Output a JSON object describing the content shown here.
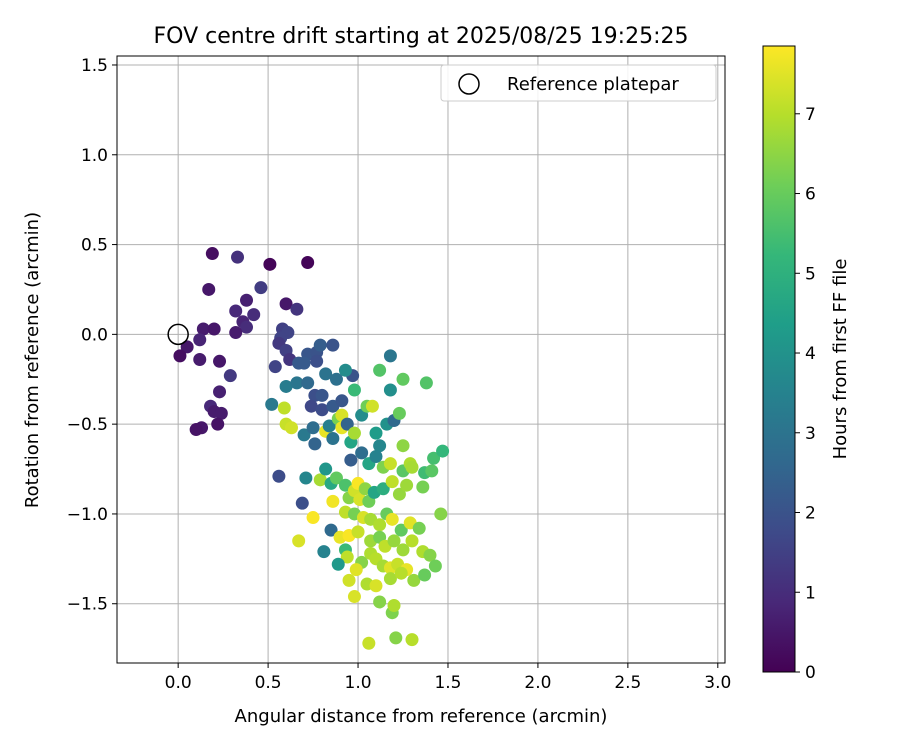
{
  "chart_data": {
    "type": "scatter",
    "title": "FOV centre drift starting at 2025/08/25 19:25:25",
    "xlabel": "Angular distance from reference (arcmin)",
    "ylabel": "Rotation from reference (arcmin)",
    "xlim": [
      -0.34,
      3.04
    ],
    "ylim": [
      -1.83,
      1.55
    ],
    "xticks": [
      0.0,
      0.5,
      1.0,
      1.5,
      2.0,
      2.5,
      3.0
    ],
    "xtick_labels": [
      "0.0",
      "0.5",
      "1.0",
      "1.5",
      "2.0",
      "2.5",
      "3.0"
    ],
    "yticks": [
      1.5,
      1.0,
      0.5,
      0.0,
      -0.5,
      -1.0,
      -1.5
    ],
    "ytick_labels": [
      "1.5",
      "1.0",
      "0.5",
      "0.0",
      "−0.5",
      "−1.0",
      "−1.5"
    ],
    "grid": true,
    "legend": {
      "placement": "top-right",
      "entries": [
        {
          "label": "Reference platepar",
          "marker": "open-circle",
          "x": 0.0,
          "y": 0.0
        }
      ]
    },
    "colorbar": {
      "label": "Hours from first FF file",
      "range": [
        0,
        7.85
      ],
      "ticks": [
        0,
        1,
        2,
        3,
        4,
        5,
        6,
        7
      ],
      "tick_labels": [
        "0",
        "1",
        "2",
        "3",
        "4",
        "5",
        "6",
        "7"
      ],
      "colormap": "viridis"
    },
    "series": [
      {
        "encoding": "[x, y, hours]",
        "points": [
          [
            0.19,
            0.45,
            0.3
          ],
          [
            0.33,
            0.43,
            1.1
          ],
          [
            0.51,
            0.39,
            0.1
          ],
          [
            0.72,
            0.4,
            0.1
          ],
          [
            0.17,
            0.25,
            0.5
          ],
          [
            0.46,
            0.26,
            1.4
          ],
          [
            0.6,
            0.17,
            0.5
          ],
          [
            0.66,
            0.14,
            1.2
          ],
          [
            0.38,
            0.19,
            0.7
          ],
          [
            0.32,
            0.13,
            0.9
          ],
          [
            0.42,
            0.11,
            1.0
          ],
          [
            0.36,
            0.07,
            0.8
          ],
          [
            0.38,
            0.04,
            1.0
          ],
          [
            0.14,
            0.03,
            0.6
          ],
          [
            0.2,
            0.03,
            0.5
          ],
          [
            0.32,
            0.01,
            0.6
          ],
          [
            0.58,
            0.03,
            1.5
          ],
          [
            0.61,
            0.01,
            1.6
          ],
          [
            0.57,
            -0.02,
            1.6
          ],
          [
            0.56,
            -0.05,
            1.3
          ],
          [
            0.05,
            -0.07,
            0.5
          ],
          [
            0.12,
            -0.03,
            0.8
          ],
          [
            0.01,
            -0.12,
            0.3
          ],
          [
            0.12,
            -0.14,
            0.6
          ],
          [
            0.23,
            -0.15,
            0.5
          ],
          [
            0.6,
            -0.09,
            1.5
          ],
          [
            0.62,
            -0.14,
            1.2
          ],
          [
            0.54,
            -0.18,
            1.6
          ],
          [
            0.67,
            -0.16,
            2.2
          ],
          [
            0.72,
            -0.11,
            2.1
          ],
          [
            0.7,
            -0.16,
            2.2
          ],
          [
            0.77,
            -0.1,
            2.0
          ],
          [
            0.79,
            -0.06,
            2.3
          ],
          [
            0.86,
            -0.06,
            2.0
          ],
          [
            0.77,
            -0.15,
            1.9
          ],
          [
            0.29,
            -0.23,
            1.3
          ],
          [
            0.23,
            -0.32,
            0.7
          ],
          [
            0.6,
            -0.29,
            3.3
          ],
          [
            0.66,
            -0.27,
            3.1
          ],
          [
            0.72,
            -0.27,
            2.7
          ],
          [
            0.82,
            -0.22,
            3.0
          ],
          [
            0.88,
            -0.25,
            2.9
          ],
          [
            0.76,
            -0.34,
            1.9
          ],
          [
            0.8,
            -0.34,
            2.1
          ],
          [
            0.74,
            -0.4,
            1.7
          ],
          [
            0.8,
            -0.42,
            1.8
          ],
          [
            0.86,
            -0.4,
            2.2
          ],
          [
            0.91,
            -0.37,
            2.1
          ],
          [
            0.97,
            -0.23,
            2.0
          ],
          [
            0.93,
            -0.2,
            3.8
          ],
          [
            0.98,
            -0.31,
            5.3
          ],
          [
            1.12,
            -0.2,
            5.7
          ],
          [
            1.18,
            -0.12,
            3.1
          ],
          [
            1.18,
            -0.31,
            3.9
          ],
          [
            1.25,
            -0.25,
            5.9
          ],
          [
            1.38,
            -0.27,
            5.7
          ],
          [
            0.52,
            -0.39,
            3.2
          ],
          [
            0.59,
            -0.41,
            7.1
          ],
          [
            0.6,
            -0.5,
            7.2
          ],
          [
            0.63,
            -0.52,
            7.3
          ],
          [
            0.7,
            -0.56,
            3.2
          ],
          [
            0.75,
            -0.52,
            2.8
          ],
          [
            0.76,
            -0.61,
            2.5
          ],
          [
            0.82,
            -0.54,
            7.6
          ],
          [
            0.84,
            -0.51,
            3.4
          ],
          [
            0.86,
            -0.58,
            3.0
          ],
          [
            0.89,
            -0.47,
            6.2
          ],
          [
            0.91,
            -0.45,
            7.4
          ],
          [
            0.91,
            -0.52,
            7.6
          ],
          [
            0.94,
            -0.5,
            2.5
          ],
          [
            0.96,
            -0.6,
            4.6
          ],
          [
            0.98,
            -0.55,
            6.8
          ],
          [
            1.02,
            -0.45,
            3.8
          ],
          [
            1.05,
            -0.4,
            6.1
          ],
          [
            1.08,
            -0.4,
            7.3
          ],
          [
            1.1,
            -0.55,
            4.3
          ],
          [
            1.12,
            -0.62,
            3.6
          ],
          [
            1.16,
            -0.5,
            4.0
          ],
          [
            1.2,
            -0.48,
            2.7
          ],
          [
            1.23,
            -0.44,
            6.0
          ],
          [
            1.25,
            -0.62,
            6.5
          ],
          [
            0.96,
            -0.7,
            2.3
          ],
          [
            1.02,
            -0.66,
            2.8
          ],
          [
            1.06,
            -0.72,
            4.6
          ],
          [
            1.1,
            -0.68,
            3.5
          ],
          [
            1.14,
            -0.74,
            6.3
          ],
          [
            1.18,
            -0.72,
            7.2
          ],
          [
            1.25,
            -0.76,
            5.8
          ],
          [
            1.29,
            -0.72,
            6.9
          ],
          [
            1.3,
            -0.74,
            6.8
          ],
          [
            1.37,
            -0.77,
            5.4
          ],
          [
            1.42,
            -0.69,
            5.5
          ],
          [
            1.47,
            -0.65,
            5.2
          ],
          [
            1.41,
            -0.76,
            5.8
          ],
          [
            0.56,
            -0.79,
            1.8
          ],
          [
            0.71,
            -0.8,
            3.6
          ],
          [
            0.79,
            -0.81,
            6.8
          ],
          [
            0.82,
            -0.75,
            4.1
          ],
          [
            0.85,
            -0.83,
            4.7
          ],
          [
            0.88,
            -0.8,
            5.9
          ],
          [
            0.93,
            -0.84,
            5.6
          ],
          [
            0.95,
            -0.91,
            6.4
          ],
          [
            0.98,
            -0.87,
            7.3
          ],
          [
            1.0,
            -0.83,
            7.8
          ],
          [
            1.01,
            -0.92,
            7.4
          ],
          [
            1.04,
            -0.86,
            6.5
          ],
          [
            1.06,
            -0.93,
            6.1
          ],
          [
            1.09,
            -0.88,
            4.6
          ],
          [
            1.14,
            -0.86,
            4.9
          ],
          [
            1.19,
            -0.82,
            7.1
          ],
          [
            1.23,
            -0.89,
            6.6
          ],
          [
            1.27,
            -0.84,
            6.7
          ],
          [
            1.36,
            -0.85,
            6.2
          ],
          [
            0.69,
            -0.94,
            1.9
          ],
          [
            0.86,
            -0.93,
            7.7
          ],
          [
            0.93,
            -0.99,
            7.1
          ],
          [
            0.98,
            -1.0,
            6.2
          ],
          [
            1.03,
            -1.02,
            7.4
          ],
          [
            1.07,
            -1.03,
            6.8
          ],
          [
            1.12,
            -1.06,
            6.9
          ],
          [
            1.16,
            -1.0,
            6.0
          ],
          [
            1.19,
            -1.03,
            7.6
          ],
          [
            1.24,
            -1.09,
            5.9
          ],
          [
            1.29,
            -1.05,
            7.5
          ],
          [
            1.34,
            -1.08,
            6.2
          ],
          [
            1.46,
            -1.0,
            6.4
          ],
          [
            0.75,
            -1.02,
            7.8
          ],
          [
            0.85,
            -1.09,
            2.7
          ],
          [
            0.9,
            -1.13,
            7.6
          ],
          [
            0.95,
            -1.12,
            7.8
          ],
          [
            1.0,
            -1.1,
            7.2
          ],
          [
            1.07,
            -1.15,
            6.7
          ],
          [
            1.12,
            -1.13,
            6.2
          ],
          [
            1.15,
            -1.18,
            7.1
          ],
          [
            1.2,
            -1.15,
            6.6
          ],
          [
            1.25,
            -1.2,
            6.7
          ],
          [
            1.3,
            -1.15,
            7.0
          ],
          [
            0.67,
            -1.15,
            7.4
          ],
          [
            0.81,
            -1.21,
            3.5
          ],
          [
            0.93,
            -1.2,
            5.3
          ],
          [
            0.94,
            -1.24,
            7.1
          ],
          [
            1.02,
            -1.27,
            6.4
          ],
          [
            1.07,
            -1.22,
            6.9
          ],
          [
            1.1,
            -1.25,
            7.0
          ],
          [
            1.14,
            -1.29,
            6.8
          ],
          [
            1.18,
            -1.3,
            7.5
          ],
          [
            1.22,
            -1.28,
            7.2
          ],
          [
            1.27,
            -1.31,
            7.6
          ],
          [
            1.36,
            -1.21,
            6.9
          ],
          [
            1.4,
            -1.23,
            6.4
          ],
          [
            1.43,
            -1.29,
            6.1
          ],
          [
            0.89,
            -1.28,
            4.2
          ],
          [
            0.95,
            -1.37,
            7.3
          ],
          [
            0.99,
            -1.31,
            7.5
          ],
          [
            1.05,
            -1.39,
            6.9
          ],
          [
            1.1,
            -1.4,
            7.4
          ],
          [
            1.18,
            -1.36,
            6.8
          ],
          [
            1.24,
            -1.33,
            7.0
          ],
          [
            1.31,
            -1.37,
            6.6
          ],
          [
            1.37,
            -1.34,
            6.0
          ],
          [
            0.98,
            -1.46,
            7.4
          ],
          [
            1.12,
            -1.49,
            6.4
          ],
          [
            1.19,
            -1.55,
            6.3
          ],
          [
            1.2,
            -1.51,
            6.9
          ],
          [
            1.06,
            -1.72,
            7.2
          ],
          [
            1.21,
            -1.69,
            6.4
          ],
          [
            1.3,
            -1.7,
            7.0
          ],
          [
            0.18,
            -0.4,
            0.9
          ],
          [
            0.2,
            -0.43,
            0.6
          ],
          [
            0.24,
            -0.44,
            0.6
          ],
          [
            0.13,
            -0.52,
            0.5
          ],
          [
            0.1,
            -0.53,
            0.4
          ],
          [
            0.22,
            -0.5,
            0.4
          ]
        ]
      }
    ]
  }
}
